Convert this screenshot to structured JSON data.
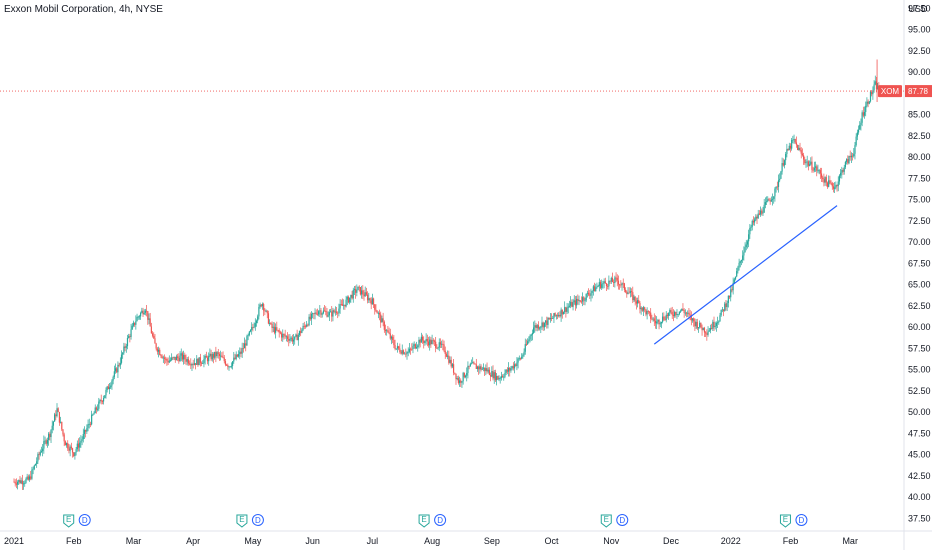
{
  "chart_data": {
    "type": "candlestick",
    "title": "Exxon Mobil Corporation, 4h, NYSE",
    "symbol": "XOM",
    "last_price": "87.78",
    "currency": "USD",
    "ylim": [
      36,
      98.5
    ],
    "y_ticks": [
      "37.50",
      "40.00",
      "42.50",
      "45.00",
      "47.50",
      "50.00",
      "52.50",
      "55.00",
      "57.50",
      "60.00",
      "62.50",
      "65.00",
      "67.50",
      "70.00",
      "72.50",
      "75.00",
      "77.50",
      "80.00",
      "82.50",
      "85.00",
      "87.50",
      "90.00",
      "92.50",
      "95.00",
      "97.50"
    ],
    "x_ticks": [
      "2021",
      "Feb",
      "Mar",
      "Apr",
      "May",
      "Jun",
      "Jul",
      "Aug",
      "Sep",
      "Oct",
      "Nov",
      "Dec",
      "2022",
      "Feb",
      "Mar"
    ],
    "x_tick_months": [
      0,
      1,
      2,
      3,
      4,
      5,
      6,
      7,
      8,
      9,
      10,
      11,
      12,
      13,
      14
    ],
    "x_range_months": [
      0,
      14.7
    ],
    "price_path": [
      [
        0.0,
        41.8
      ],
      [
        0.25,
        42.0
      ],
      [
        0.45,
        45.5
      ],
      [
        0.6,
        47.5
      ],
      [
        0.72,
        50.3
      ],
      [
        0.85,
        46.5
      ],
      [
        1.0,
        45.2
      ],
      [
        1.15,
        47.0
      ],
      [
        1.35,
        50.0
      ],
      [
        1.55,
        52.5
      ],
      [
        1.75,
        55.5
      ],
      [
        1.9,
        58.5
      ],
      [
        2.05,
        61.0
      ],
      [
        2.2,
        62.3
      ],
      [
        2.35,
        58.0
      ],
      [
        2.55,
        56.0
      ],
      [
        2.8,
        56.5
      ],
      [
        3.0,
        55.8
      ],
      [
        3.2,
        56.2
      ],
      [
        3.4,
        56.8
      ],
      [
        3.6,
        55.5
      ],
      [
        3.8,
        57.0
      ],
      [
        4.0,
        60.0
      ],
      [
        4.15,
        63.0
      ],
      [
        4.3,
        60.0
      ],
      [
        4.5,
        59.0
      ],
      [
        4.7,
        58.5
      ],
      [
        4.9,
        60.5
      ],
      [
        5.1,
        62.0
      ],
      [
        5.3,
        61.5
      ],
      [
        5.5,
        62.5
      ],
      [
        5.75,
        64.5
      ],
      [
        6.0,
        63.0
      ],
      [
        6.2,
        60.0
      ],
      [
        6.4,
        57.5
      ],
      [
        6.6,
        57.0
      ],
      [
        6.8,
        58.5
      ],
      [
        7.0,
        58.2
      ],
      [
        7.2,
        57.5
      ],
      [
        7.45,
        53.5
      ],
      [
        7.65,
        55.5
      ],
      [
        7.9,
        55.0
      ],
      [
        8.1,
        54.0
      ],
      [
        8.3,
        55.0
      ],
      [
        8.5,
        56.5
      ],
      [
        8.7,
        60.0
      ],
      [
        8.9,
        60.5
      ],
      [
        9.1,
        61.5
      ],
      [
        9.3,
        62.5
      ],
      [
        9.55,
        63.5
      ],
      [
        9.8,
        65.0
      ],
      [
        10.1,
        65.5
      ],
      [
        10.3,
        64.0
      ],
      [
        10.55,
        62.0
      ],
      [
        10.75,
        60.5
      ],
      [
        10.95,
        61.5
      ],
      [
        11.2,
        62.0
      ],
      [
        11.4,
        60.5
      ],
      [
        11.6,
        59.5
      ],
      [
        11.8,
        61.0
      ],
      [
        12.0,
        64.0
      ],
      [
        12.15,
        67.5
      ],
      [
        12.35,
        72.0
      ],
      [
        12.55,
        74.0
      ],
      [
        12.75,
        76.0
      ],
      [
        12.9,
        80.0
      ],
      [
        13.05,
        82.0
      ],
      [
        13.25,
        79.5
      ],
      [
        13.45,
        78.5
      ],
      [
        13.6,
        77.0
      ],
      [
        13.75,
        76.5
      ],
      [
        13.9,
        79.0
      ],
      [
        14.05,
        80.5
      ],
      [
        14.2,
        85.0
      ],
      [
        14.32,
        87.0
      ],
      [
        14.42,
        88.5
      ],
      [
        14.5,
        87.8
      ]
    ],
    "trendline": [
      [
        10.72,
        58.0
      ],
      [
        13.78,
        74.3
      ]
    ],
    "last_price_line": 87.78,
    "events": [
      {
        "e_label": "E",
        "d_label": "D",
        "month": 1.05
      },
      {
        "e_label": "E",
        "d_label": "D",
        "month": 3.95
      },
      {
        "e_label": "E",
        "d_label": "D",
        "month": 7.0
      },
      {
        "e_label": "E",
        "d_label": "D",
        "month": 10.05
      },
      {
        "e_label": "E",
        "d_label": "D",
        "month": 13.05
      }
    ],
    "colors": {
      "up": "#26a69a",
      "down": "#ef5350",
      "trendline": "#2962ff",
      "price_line": "#ef5350",
      "axis_text": "#131722",
      "axis_line": "#e0e3eb",
      "earnings_badge": "#26a69a",
      "dividend_badge": "#2962ff"
    }
  }
}
